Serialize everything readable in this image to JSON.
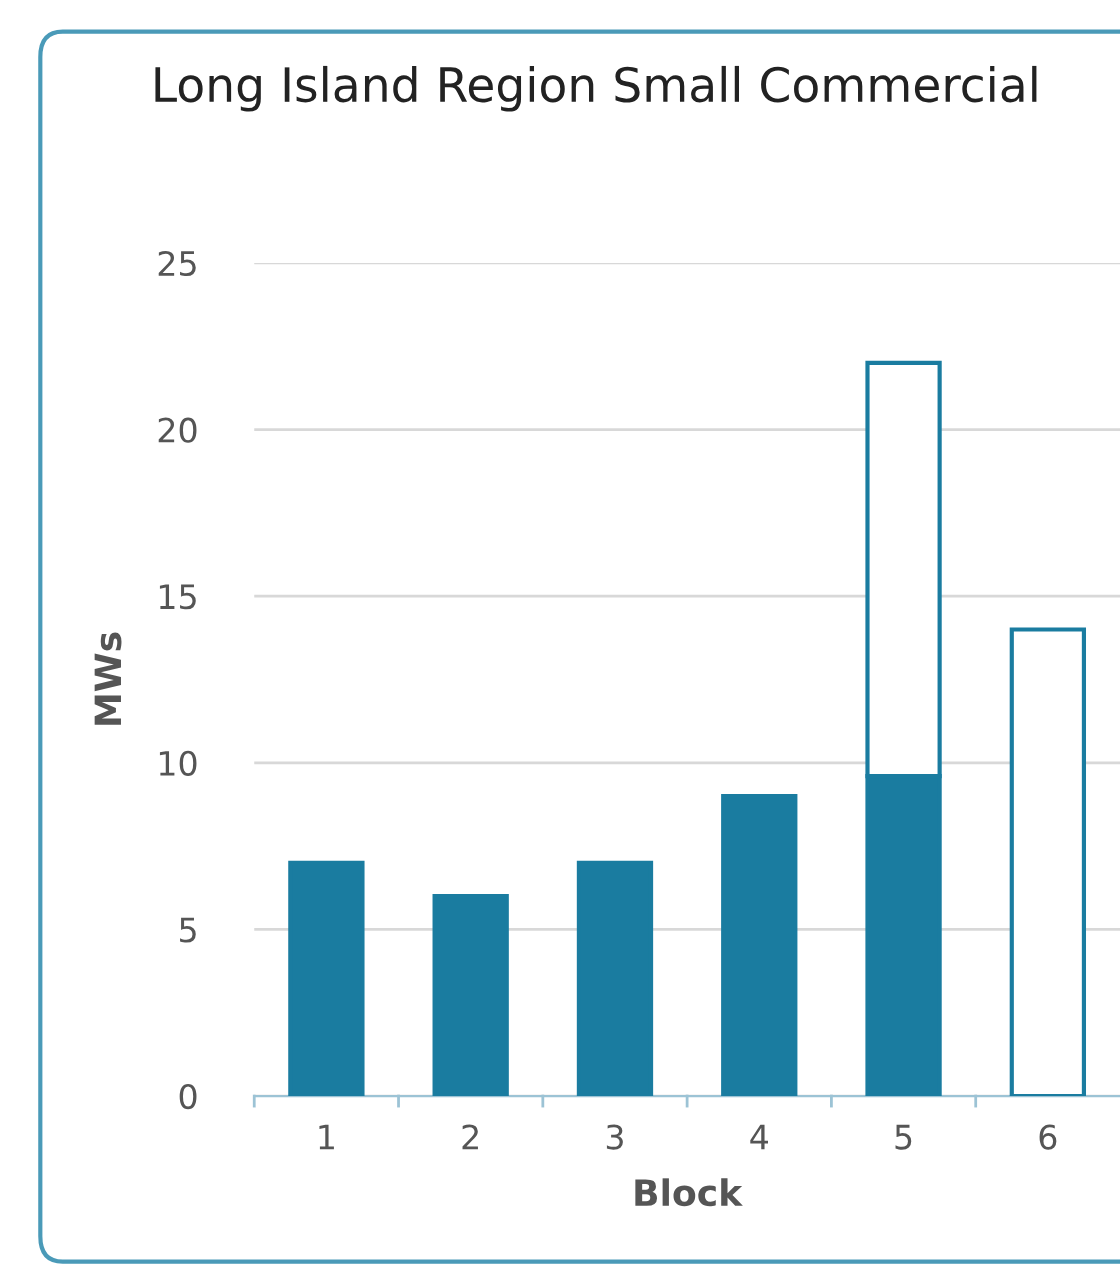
{
  "chart_data": {
    "type": "bar",
    "title": "Long Island Region Small Commercial",
    "xlabel": "Block",
    "ylabel": "MWs",
    "categories": [
      "1",
      "2",
      "3",
      "4",
      "5",
      "6"
    ],
    "stacked": true,
    "series": [
      {
        "color": "#1a7ca0",
        "values": [
          7,
          6,
          7,
          9,
          9.6,
          0
        ]
      },
      {
        "color": "#ffffff",
        "values": [
          0,
          0,
          0,
          0,
          12.4,
          14
        ]
      }
    ],
    "ylim": [
      0,
      25
    ],
    "yticks": [
      0,
      5,
      10,
      15,
      20,
      25
    ],
    "grid": "y",
    "legend": false
  }
}
